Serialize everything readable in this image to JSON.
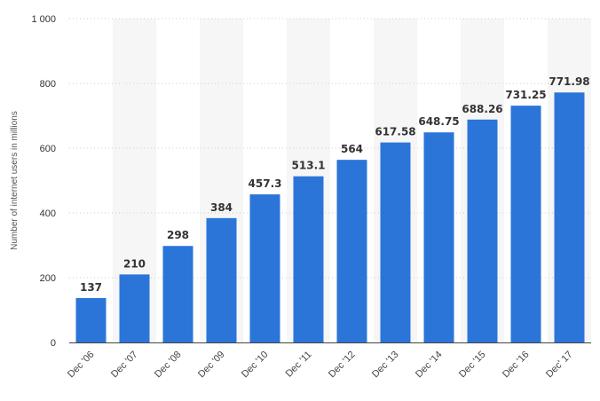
{
  "chart_data": {
    "type": "bar",
    "title": "",
    "xlabel": "",
    "ylabel": "Number of internet users in millions",
    "categories": [
      "Dec '06",
      "Dec '07",
      "Dec '08",
      "Dec '09",
      "Dec '10",
      "Dec '11",
      "Dec '12",
      "Dec '13",
      "Dec '14",
      "Dec '15",
      "Dec '16",
      "Dec' 17"
    ],
    "values": [
      137,
      210,
      298,
      384,
      457.3,
      513.1,
      564,
      617.58,
      648.75,
      688.26,
      731.25,
      771.98
    ],
    "value_labels": [
      "137",
      "210",
      "298",
      "384",
      "457.3",
      "513.1",
      "564",
      "617.58",
      "648.75",
      "688.26",
      "731.25",
      "771.98"
    ],
    "ylim": [
      0,
      1000
    ],
    "yticks": [
      0,
      200,
      400,
      600,
      800,
      1000
    ],
    "ytick_labels": [
      "0",
      "200",
      "400",
      "600",
      "800",
      "1 000"
    ],
    "grid": true,
    "grid_style": "dotted horizontal",
    "alternating_band_shading": true,
    "legend": "none",
    "colors": {
      "bar": "#2b75d9",
      "band": "#f6f6f6",
      "grid": "#cccccc",
      "axis": "#444444"
    }
  }
}
